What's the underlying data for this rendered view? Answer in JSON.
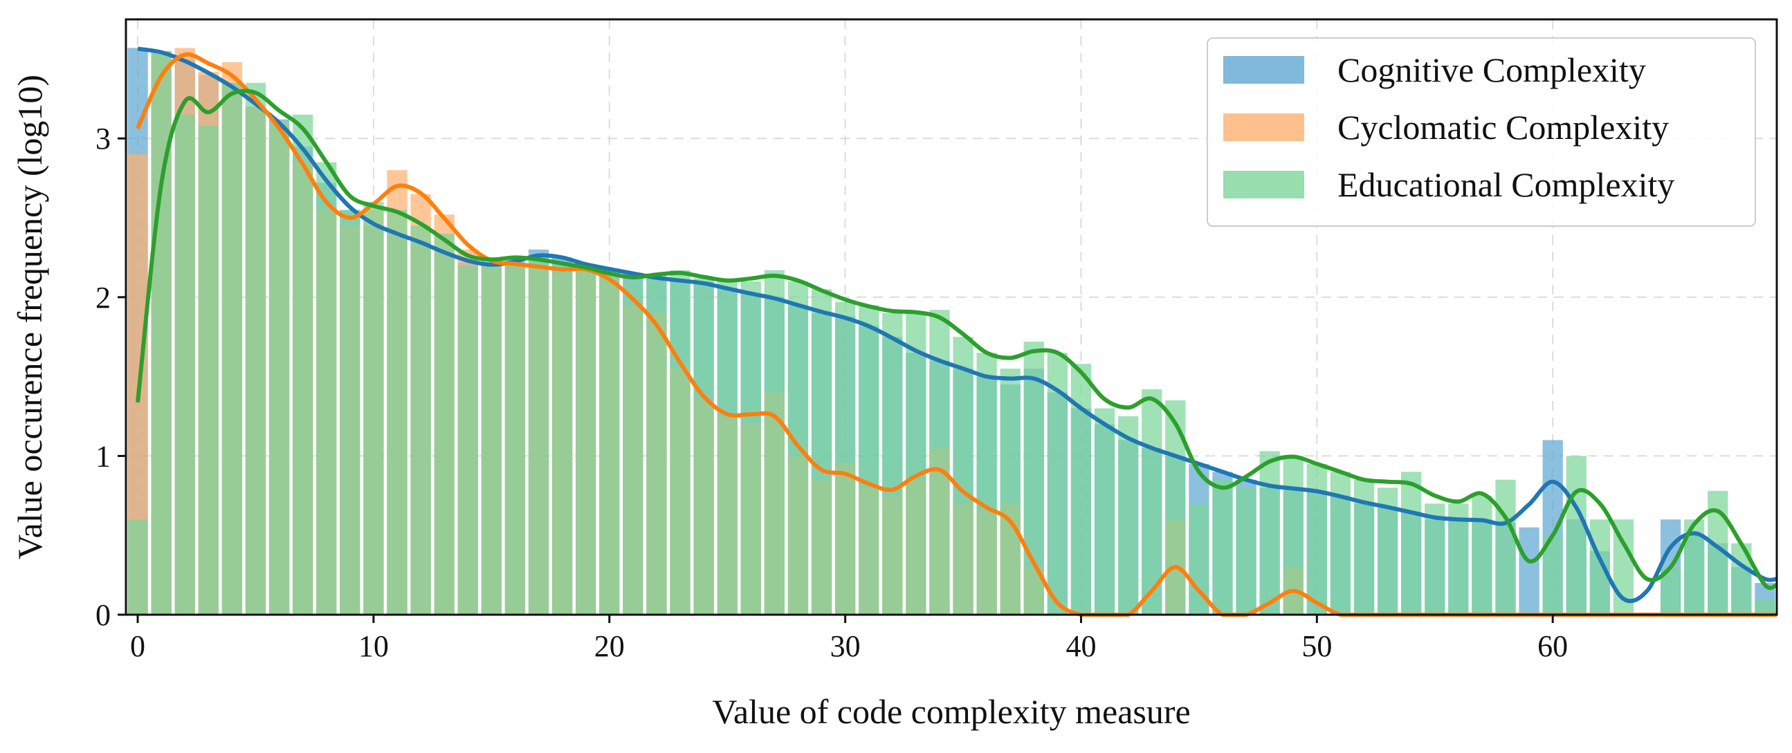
{
  "chart_data": {
    "type": "bar",
    "xlabel": "Value of code complexity measure",
    "ylabel": "Value occurence frequency (log10)",
    "xlim": [
      -0.5,
      69.5
    ],
    "ylim": [
      0,
      3.75
    ],
    "xticks": [
      0,
      10,
      20,
      30,
      40,
      50,
      60
    ],
    "yticks": [
      0,
      1,
      2,
      3
    ],
    "grid": true,
    "legend_position": "top-right",
    "series": [
      {
        "name": "Cognitive Complexity",
        "color": "#5fa8d3",
        "line_color": "#1f77b4",
        "values": [
          3.57,
          3.55,
          3.5,
          3.4,
          3.35,
          3.2,
          3.12,
          2.95,
          2.72,
          2.55,
          2.45,
          2.4,
          2.35,
          2.28,
          2.22,
          2.2,
          2.2,
          2.3,
          2.25,
          2.2,
          2.18,
          2.15,
          2.12,
          2.1,
          2.1,
          2.05,
          2.02,
          2.0,
          1.95,
          1.9,
          1.88,
          1.82,
          1.75,
          1.65,
          1.6,
          1.55,
          1.5,
          1.45,
          1.55,
          1.4,
          1.3,
          1.2,
          1.1,
          1.05,
          1.0,
          0.95,
          0.9,
          0.85,
          0.8,
          0.8,
          0.78,
          0.75,
          0.7,
          0.68,
          0.65,
          0.6,
          0.6,
          0.6,
          0.58,
          0.55,
          1.1,
          0.6,
          0.4,
          0,
          0,
          0.6,
          0.5,
          0.45,
          0.3,
          0.2
        ]
      },
      {
        "name": "Cyclomatic Complexity",
        "color": "#ffb070",
        "line_color": "#ff7f0e",
        "values": [
          2.9,
          3.55,
          3.57,
          3.42,
          3.48,
          3.2,
          3.1,
          2.85,
          2.55,
          2.45,
          2.55,
          2.8,
          2.65,
          2.52,
          2.3,
          2.2,
          2.22,
          2.2,
          2.15,
          2.2,
          2.15,
          1.95,
          1.9,
          1.55,
          1.35,
          1.25,
          1.2,
          1.4,
          1.0,
          0.85,
          0.95,
          0.8,
          0.75,
          0.85,
          1.05,
          0.7,
          0.65,
          0.7,
          0.3,
          0,
          0,
          0,
          0,
          0,
          0.6,
          0,
          0,
          0,
          0,
          0.3,
          0,
          0,
          0,
          0,
          0,
          0,
          0,
          0,
          0,
          0,
          0,
          0,
          0,
          0,
          0,
          0,
          0,
          0,
          0,
          0
        ]
      },
      {
        "name": "Educational Complexity",
        "color": "#7dd59a",
        "line_color": "#2ca02c",
        "values": [
          0.6,
          3.55,
          3.15,
          3.08,
          3.35,
          3.35,
          3.1,
          3.15,
          2.85,
          2.55,
          2.6,
          2.55,
          2.45,
          2.4,
          2.2,
          2.25,
          2.25,
          2.25,
          2.2,
          2.2,
          2.15,
          2.1,
          2.15,
          2.17,
          2.12,
          2.1,
          2.1,
          2.17,
          2.1,
          2.05,
          1.97,
          1.95,
          1.9,
          1.9,
          1.92,
          1.75,
          1.65,
          1.55,
          1.72,
          1.65,
          1.58,
          1.3,
          1.25,
          1.42,
          1.35,
          0.7,
          0.85,
          0.8,
          1.03,
          1.0,
          0.95,
          0.9,
          0.85,
          0.8,
          0.9,
          0.7,
          0.7,
          0.75,
          0.85,
          0,
          0.5,
          1.0,
          0.6,
          0.6,
          0,
          0.3,
          0.6,
          0.78,
          0.45,
          0.1
        ]
      }
    ]
  }
}
